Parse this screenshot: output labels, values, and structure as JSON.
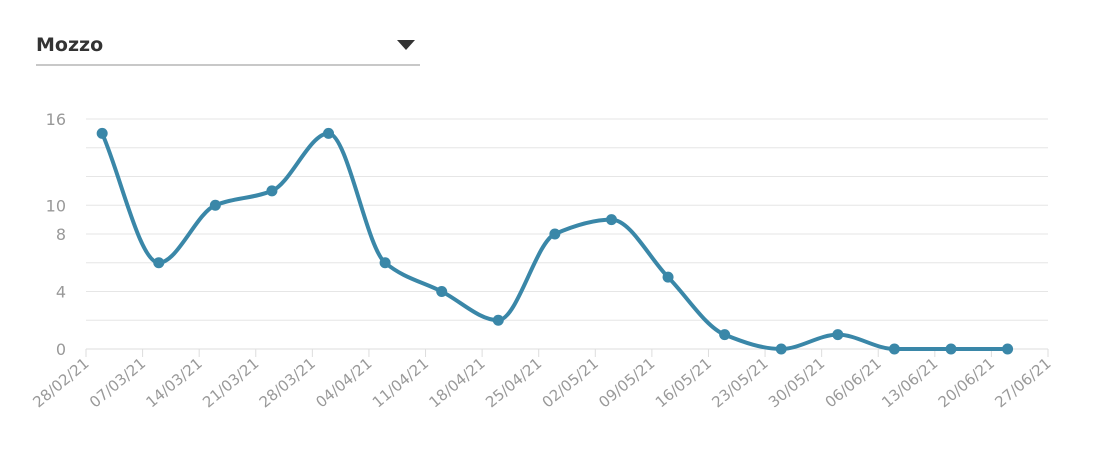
{
  "selector": {
    "value": "Mozzo",
    "icon": "caret-down-icon"
  },
  "chart_data": {
    "type": "line",
    "title": "",
    "xlabel": "",
    "ylabel": "",
    "ylim": [
      0,
      16
    ],
    "yticks": [
      0,
      4,
      8,
      10,
      16
    ],
    "grid_step": 2,
    "grid": true,
    "line_color": "#3a87a8",
    "x_ticks": [
      "28/02/21",
      "07/03/21",
      "14/03/21",
      "21/03/21",
      "28/03/21",
      "04/04/21",
      "11/04/21",
      "18/04/21",
      "25/04/21",
      "02/05/21",
      "09/05/21",
      "16/05/21",
      "23/05/21",
      "30/05/21",
      "06/06/21",
      "13/06/21",
      "20/06/21",
      "27/06/21"
    ],
    "series": [
      {
        "x": [
          "02/03/21",
          "09/03/21",
          "16/03/21",
          "23/03/21",
          "30/03/21",
          "06/04/21",
          "13/04/21",
          "20/04/21",
          "27/04/21",
          "04/05/21",
          "11/05/21",
          "18/05/21",
          "25/05/21",
          "01/06/21",
          "08/06/21",
          "15/06/21",
          "22/06/21"
        ],
        "values": [
          15,
          6,
          10,
          11,
          15,
          6,
          4,
          2,
          8,
          9,
          5,
          1,
          0,
          1,
          0,
          0,
          0
        ]
      }
    ]
  }
}
